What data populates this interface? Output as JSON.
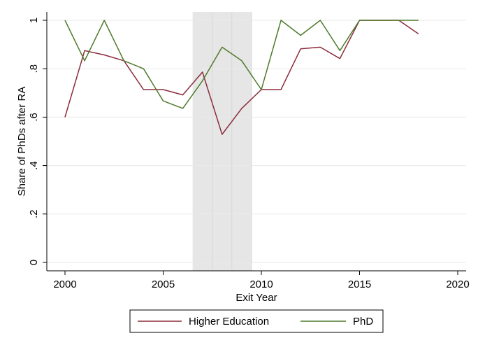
{
  "chart_data": {
    "type": "line",
    "xlabel": "Exit Year",
    "ylabel": "Share of PhDs after RA",
    "xlim": [
      2000,
      2020
    ],
    "ylim": [
      0,
      1
    ],
    "x_ticks": [
      "2000",
      "2005",
      "2010",
      "2015",
      "2020"
    ],
    "y_ticks": [
      "0",
      ".2",
      ".4",
      ".6",
      ".8",
      "1"
    ],
    "grid": true,
    "shaded_region": {
      "x_start": 2006.5,
      "x_end": 2009.5,
      "color": "#e6e6e6"
    },
    "legend_position": "bottom-center",
    "series": [
      {
        "name": "Higher Education",
        "color": "#8b2c3b",
        "x": [
          2000,
          2001,
          2002,
          2003,
          2004,
          2005,
          2006,
          2007,
          2008,
          2009,
          2010,
          2011,
          2012,
          2013,
          2014,
          2015,
          2016,
          2017,
          2018
        ],
        "values": [
          0.6,
          0.875,
          0.857,
          0.833,
          0.714,
          0.714,
          0.692,
          0.786,
          0.529,
          0.636,
          0.714,
          0.714,
          0.882,
          0.889,
          0.842,
          1.0,
          1.0,
          1.0,
          0.944
        ]
      },
      {
        "name": "PhD",
        "color": "#4f7a2b",
        "x": [
          2000,
          2001,
          2002,
          2003,
          2004,
          2005,
          2006,
          2007,
          2008,
          2009,
          2010,
          2011,
          2012,
          2013,
          2014,
          2015,
          2016,
          2017,
          2018
        ],
        "values": [
          1.0,
          0.833,
          1.0,
          0.833,
          0.8,
          0.667,
          0.636,
          0.75,
          0.889,
          0.833,
          0.714,
          1.0,
          0.938,
          1.0,
          0.875,
          1.0,
          1.0,
          1.0,
          1.0
        ]
      }
    ]
  }
}
